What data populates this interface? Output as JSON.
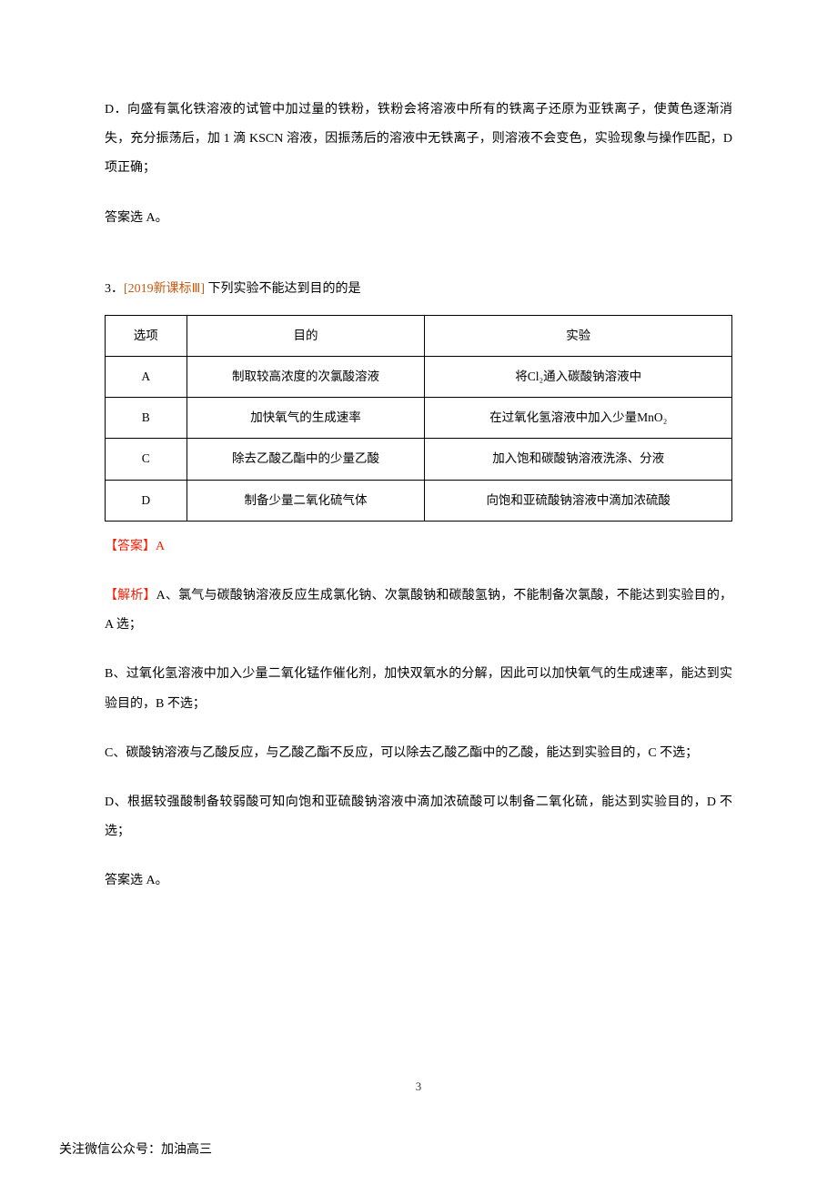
{
  "paragraphs": {
    "p_d": "D．向盛有氯化铁溶液的试管中加过量的铁粉，铁粉会将溶液中所有的铁离子还原为亚铁离子，使黄色逐渐消失，充分振荡后，加 1 滴 KSCN 溶液，因振荡后的溶液中无铁离子，则溶液不会变色，实验现象与操作匹配，D 项正确；",
    "answer_a": "答案选 A。"
  },
  "question3": {
    "number": "3．",
    "source": "[2019新课标Ⅲ]",
    "stem": " 下列实验不能达到目的的是"
  },
  "table": {
    "headers": [
      "选项",
      "目的",
      "实验"
    ],
    "rows": [
      [
        "A",
        "制取较高浓度的次氯酸溶液",
        "将Cl₂通入碳酸钠溶液中"
      ],
      [
        "B",
        "加快氧气的生成速率",
        "在过氧化氢溶液中加入少量MnO₂"
      ],
      [
        "C",
        "除去乙酸乙酯中的少量乙酸",
        "加入饱和碳酸钠溶液洗涤、分液"
      ],
      [
        "D",
        "制备少量二氧化硫气体",
        "向饱和亚硫酸钠溶液中滴加浓硫酸"
      ]
    ]
  },
  "analysis": {
    "answer_label": "【答案】A",
    "jiexi_label": "【解析】",
    "a_text": "A、氯气与碳酸钠溶液反应生成氯化钠、次氯酸钠和碳酸氢钠，不能制备次氯酸，不能达到实验目的，A 选；",
    "b_text": "B、过氧化氢溶液中加入少量二氧化锰作催化剂，加快双氧水的分解，因此可以加快氧气的生成速率，能达到实验目的，B 不选；",
    "c_text": "C、碳酸钠溶液与乙酸反应，与乙酸乙酯不反应，可以除去乙酸乙酯中的乙酸，能达到实验目的，C 不选；",
    "d_text": "D、根据较强酸制备较弱酸可知向饱和亚硫酸钠溶液中滴加浓硫酸可以制备二氧化硫，能达到实验目的，D 不选；",
    "final": "答案选 A。"
  },
  "page_number": "3",
  "footer": "关注微信公众号：加油高三",
  "colors": {
    "text": "#000000",
    "source_tag": "#c55a11",
    "red": "#fc1c03",
    "background": "#ffffff"
  },
  "typography": {
    "body_font": "SimSun",
    "font_size_pt": 10.5,
    "line_height": 2.3
  }
}
